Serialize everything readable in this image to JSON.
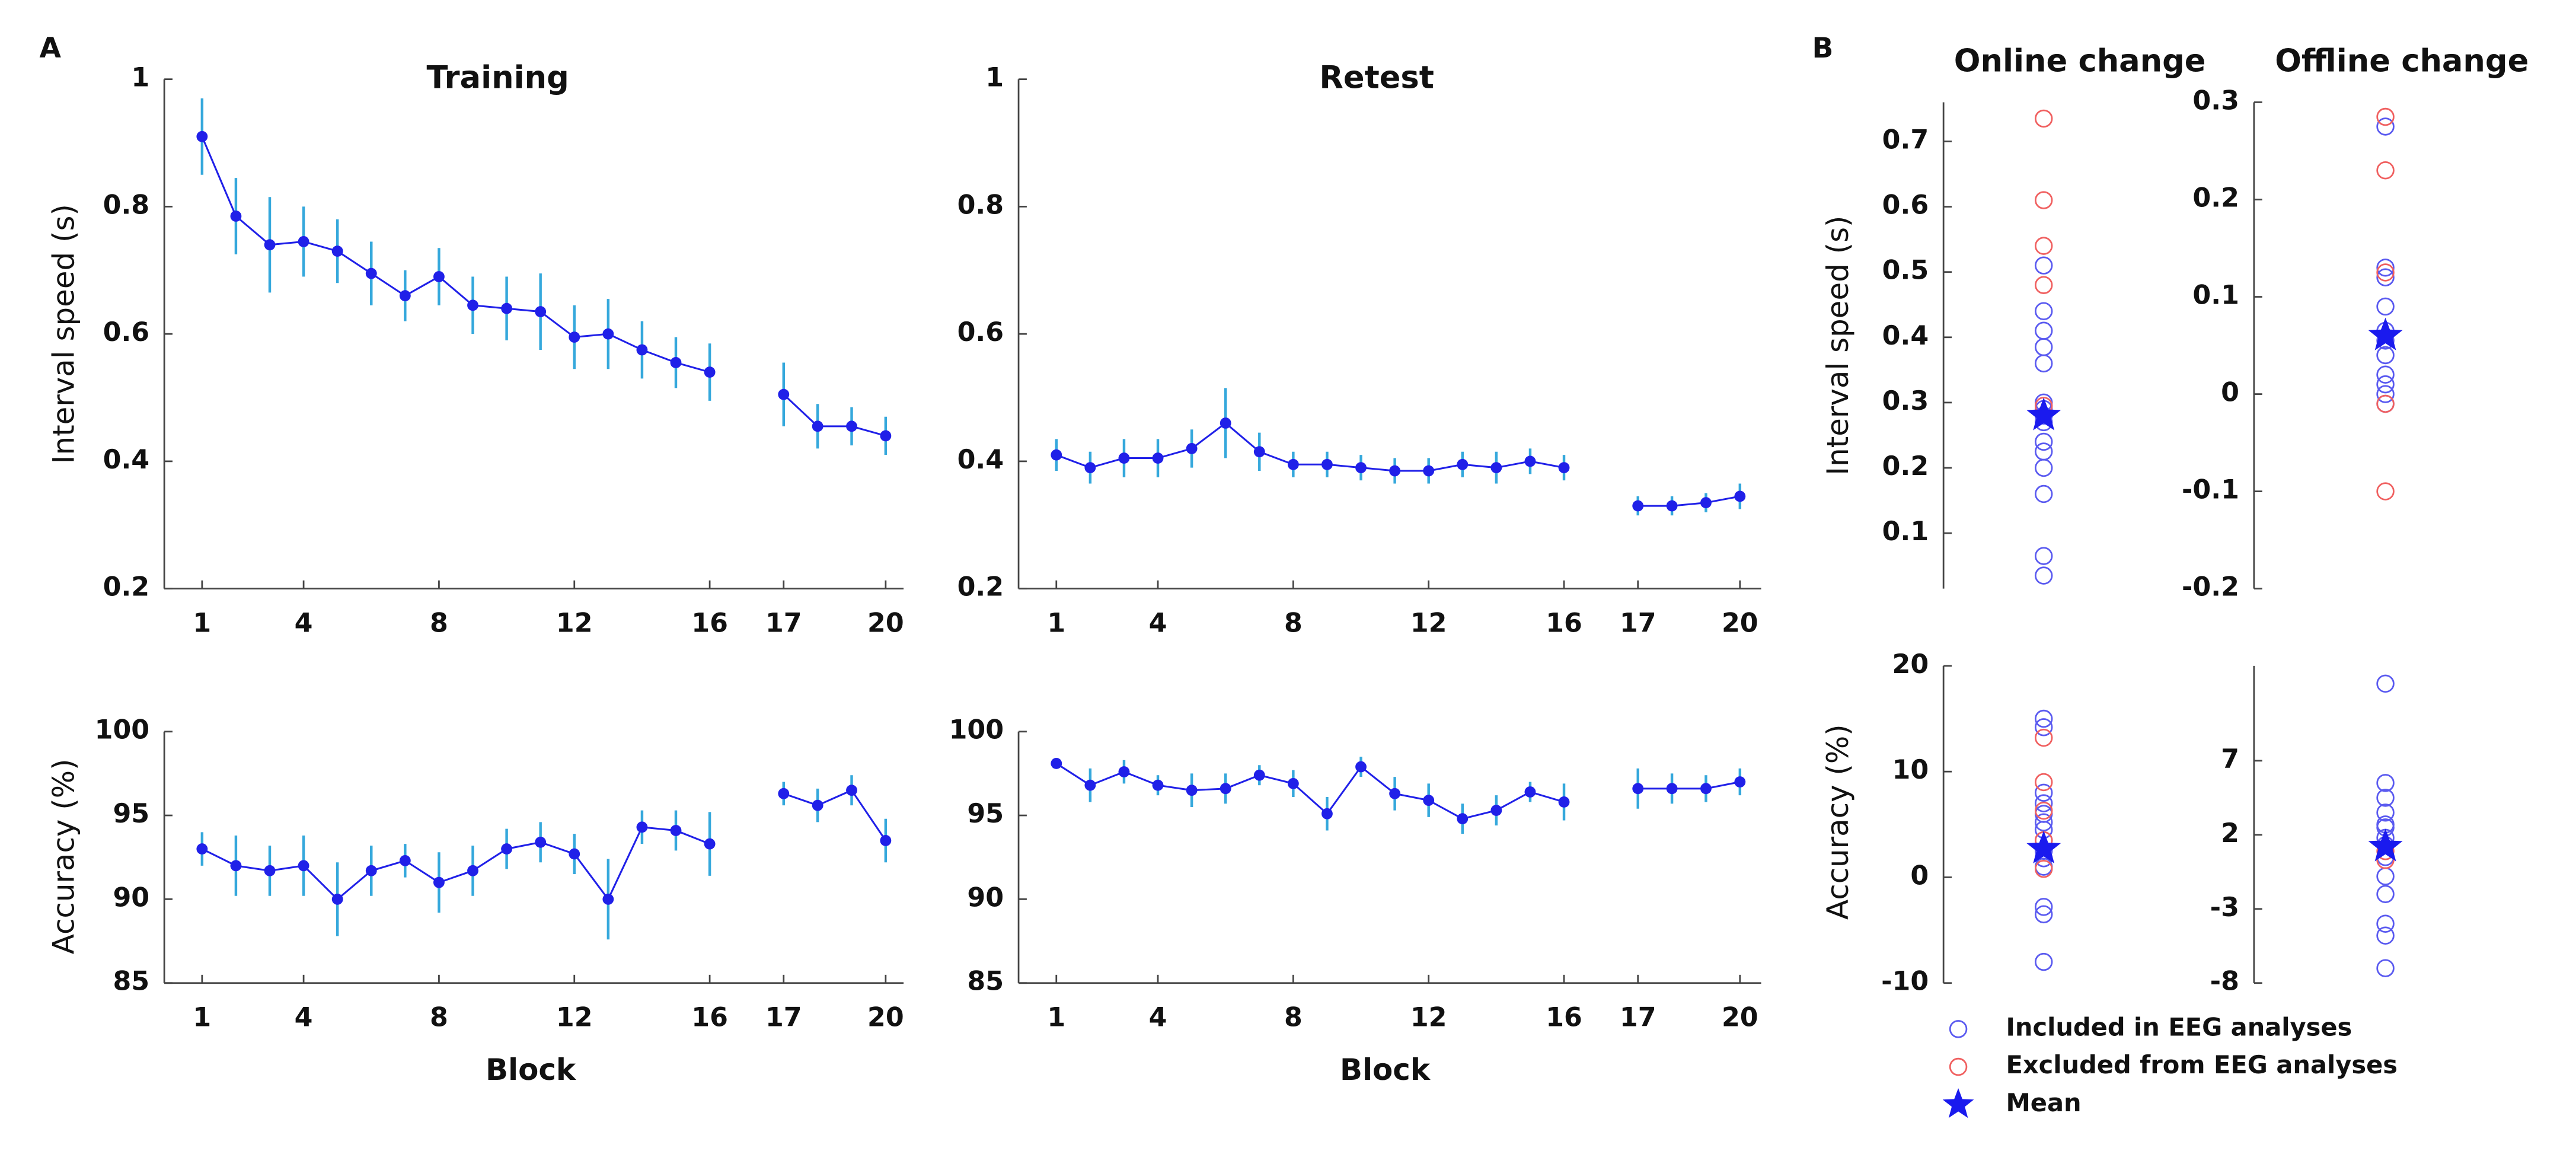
{
  "panel_labels": [
    "A",
    "B"
  ],
  "legend": [
    "Included in EEG analyses",
    "Excluded from EEG analyses",
    "Mean"
  ],
  "chart_data": [
    {
      "type": "line",
      "title": "Training",
      "ylabel": "Interval speed (s)",
      "categories": [
        1,
        null,
        null,
        4,
        null,
        null,
        null,
        8,
        null,
        null,
        null,
        12,
        null,
        null,
        null,
        16,
        17,
        null,
        null,
        20
      ],
      "ylim": [
        0.2,
        1
      ],
      "yticks": [
        0.2,
        0.4,
        0.6,
        0.8,
        1
      ],
      "series": [
        {
          "color": "#2020e8",
          "error_color": "#35a8dc",
          "values": [
            0.91,
            0.785,
            0.74,
            0.745,
            0.73,
            0.695,
            0.66,
            0.69,
            0.645,
            0.64,
            0.635,
            0.595,
            0.6,
            0.575,
            0.555,
            0.54,
            0.505,
            0.455,
            0.455,
            0.44
          ],
          "errors": [
            0.06,
            0.06,
            0.075,
            0.055,
            0.05,
            0.05,
            0.04,
            0.045,
            0.045,
            0.05,
            0.06,
            0.05,
            0.055,
            0.045,
            0.04,
            0.045,
            0.05,
            0.035,
            0.03,
            0.03
          ]
        }
      ]
    },
    {
      "type": "line",
      "title": "Retest",
      "categories": [
        1,
        null,
        null,
        4,
        null,
        null,
        null,
        8,
        null,
        null,
        null,
        12,
        null,
        null,
        null,
        16,
        17,
        null,
        null,
        20
      ],
      "ylim": [
        0.2,
        1
      ],
      "yticks": [
        0.2,
        0.4,
        0.6,
        0.8,
        1
      ],
      "series": [
        {
          "color": "#2020e8",
          "error_color": "#35a8dc",
          "values": [
            0.41,
            0.39,
            0.405,
            0.405,
            0.42,
            0.46,
            0.415,
            0.395,
            0.395,
            0.39,
            0.385,
            0.385,
            0.395,
            0.39,
            0.4,
            0.39,
            0.33,
            0.33,
            0.335,
            0.345
          ],
          "errors": [
            0.025,
            0.025,
            0.03,
            0.03,
            0.03,
            0.055,
            0.03,
            0.02,
            0.02,
            0.02,
            0.02,
            0.02,
            0.02,
            0.025,
            0.02,
            0.02,
            0.015,
            0.015,
            0.015,
            0.02
          ]
        }
      ]
    },
    {
      "type": "line",
      "ylabel": "Accuracy (%)",
      "xlabel": "Block",
      "categories": [
        1,
        null,
        null,
        4,
        null,
        null,
        null,
        8,
        null,
        null,
        null,
        12,
        null,
        null,
        null,
        16,
        17,
        null,
        null,
        20
      ],
      "ylim": [
        85,
        100
      ],
      "yticks": [
        85,
        90,
        95,
        100
      ],
      "series": [
        {
          "color": "#2020e8",
          "error_color": "#35a8dc",
          "values": [
            93,
            92,
            91.7,
            92,
            90,
            91.7,
            92.3,
            91,
            91.7,
            93,
            93.4,
            92.7,
            90,
            94.3,
            94.1,
            93.3,
            96.3,
            95.6,
            96.5,
            93.5
          ],
          "errors": [
            1,
            1.8,
            1.5,
            1.8,
            2.2,
            1.5,
            1,
            1.8,
            1.5,
            1.2,
            1.2,
            1.2,
            2.4,
            1,
            1.2,
            1.9,
            0.7,
            1,
            0.9,
            1.3
          ]
        }
      ]
    },
    {
      "type": "line",
      "xlabel": "Block",
      "categories": [
        1,
        null,
        null,
        4,
        null,
        null,
        null,
        8,
        null,
        null,
        null,
        12,
        null,
        null,
        null,
        16,
        17,
        null,
        null,
        20
      ],
      "ylim": [
        85,
        100
      ],
      "yticks": [
        85,
        90,
        95,
        100
      ],
      "series": [
        {
          "color": "#2020e8",
          "error_color": "#35a8dc",
          "values": [
            98.1,
            96.8,
            97.6,
            96.8,
            96.5,
            96.6,
            97.4,
            96.9,
            95.1,
            97.9,
            96.3,
            95.9,
            94.8,
            95.3,
            96.4,
            95.8,
            96.6,
            96.6,
            96.6,
            97
          ],
          "errors": [
            0.3,
            1,
            0.7,
            0.6,
            1,
            0.9,
            0.6,
            0.8,
            1,
            0.6,
            1,
            1,
            0.9,
            0.9,
            0.6,
            1.1,
            1.2,
            0.9,
            0.8,
            0.8
          ]
        }
      ]
    },
    {
      "type": "strip",
      "title": "Online change",
      "ylabel": "Interval speed (s)",
      "ylim": [
        0.015,
        0.76
      ],
      "yticks": [
        0.1,
        0.2,
        0.3,
        0.4,
        0.5,
        0.6,
        0.7
      ],
      "series": [
        {
          "color": "#5a5af0",
          "values": [
            0.51,
            0.44,
            0.41,
            0.385,
            0.36,
            0.3,
            0.29,
            0.28,
            0.27,
            0.24,
            0.225,
            0.2,
            0.16,
            0.065,
            0.035
          ]
        },
        {
          "color": "#f06060",
          "values": [
            0.735,
            0.61,
            0.54,
            0.48,
            0.295
          ]
        },
        {
          "color": "#1a1aee",
          "marker": "star",
          "values": [
            0.28
          ]
        }
      ]
    },
    {
      "type": "strip",
      "title": "Offline change",
      "ylim": [
        -0.2,
        0.3
      ],
      "yticks": [
        -0.2,
        -0.1,
        0,
        0.1,
        0.2,
        0.3
      ],
      "series": [
        {
          "color": "#5a5af0",
          "values": [
            0.275,
            0.13,
            0.12,
            0.09,
            0.065,
            0.055,
            0.04,
            0.02,
            0.01,
            0,
            -0.01
          ]
        },
        {
          "color": "#f06060",
          "values": [
            0.285,
            0.23,
            0.125,
            -0.01,
            -0.1
          ]
        },
        {
          "color": "#1a1aee",
          "marker": "star",
          "values": [
            0.06
          ]
        }
      ]
    },
    {
      "type": "strip",
      "ylabel": "Accuracy (%)",
      "ylim": [
        -10,
        20
      ],
      "yticks": [
        -10,
        0,
        10,
        20
      ],
      "series": [
        {
          "color": "#5a5af0",
          "values": [
            15,
            14.2,
            8,
            7,
            6,
            5.2,
            4.5,
            3.5,
            2.5,
            1.8,
            1,
            -2.8,
            -3.5,
            -8
          ]
        },
        {
          "color": "#f06060",
          "values": [
            13.2,
            9,
            6.3,
            3.5,
            0.8
          ]
        },
        {
          "color": "#1a1aee",
          "marker": "star",
          "values": [
            2.7
          ]
        }
      ]
    },
    {
      "type": "strip",
      "ylim": [
        -8,
        13.4
      ],
      "yticks": [
        -8,
        -3,
        2,
        7
      ],
      "series": [
        {
          "color": "#5a5af0",
          "values": [
            12.2,
            5.5,
            4.5,
            3.5,
            2.7,
            2.5,
            1.8,
            1.3,
            0.5,
            -0.8,
            -2,
            -4,
            -4.8,
            -7
          ]
        },
        {
          "color": "#f06060",
          "values": [
            0.9,
            0.3
          ]
        },
        {
          "color": "#1a1aee",
          "marker": "star",
          "values": [
            1.2
          ]
        }
      ]
    }
  ]
}
